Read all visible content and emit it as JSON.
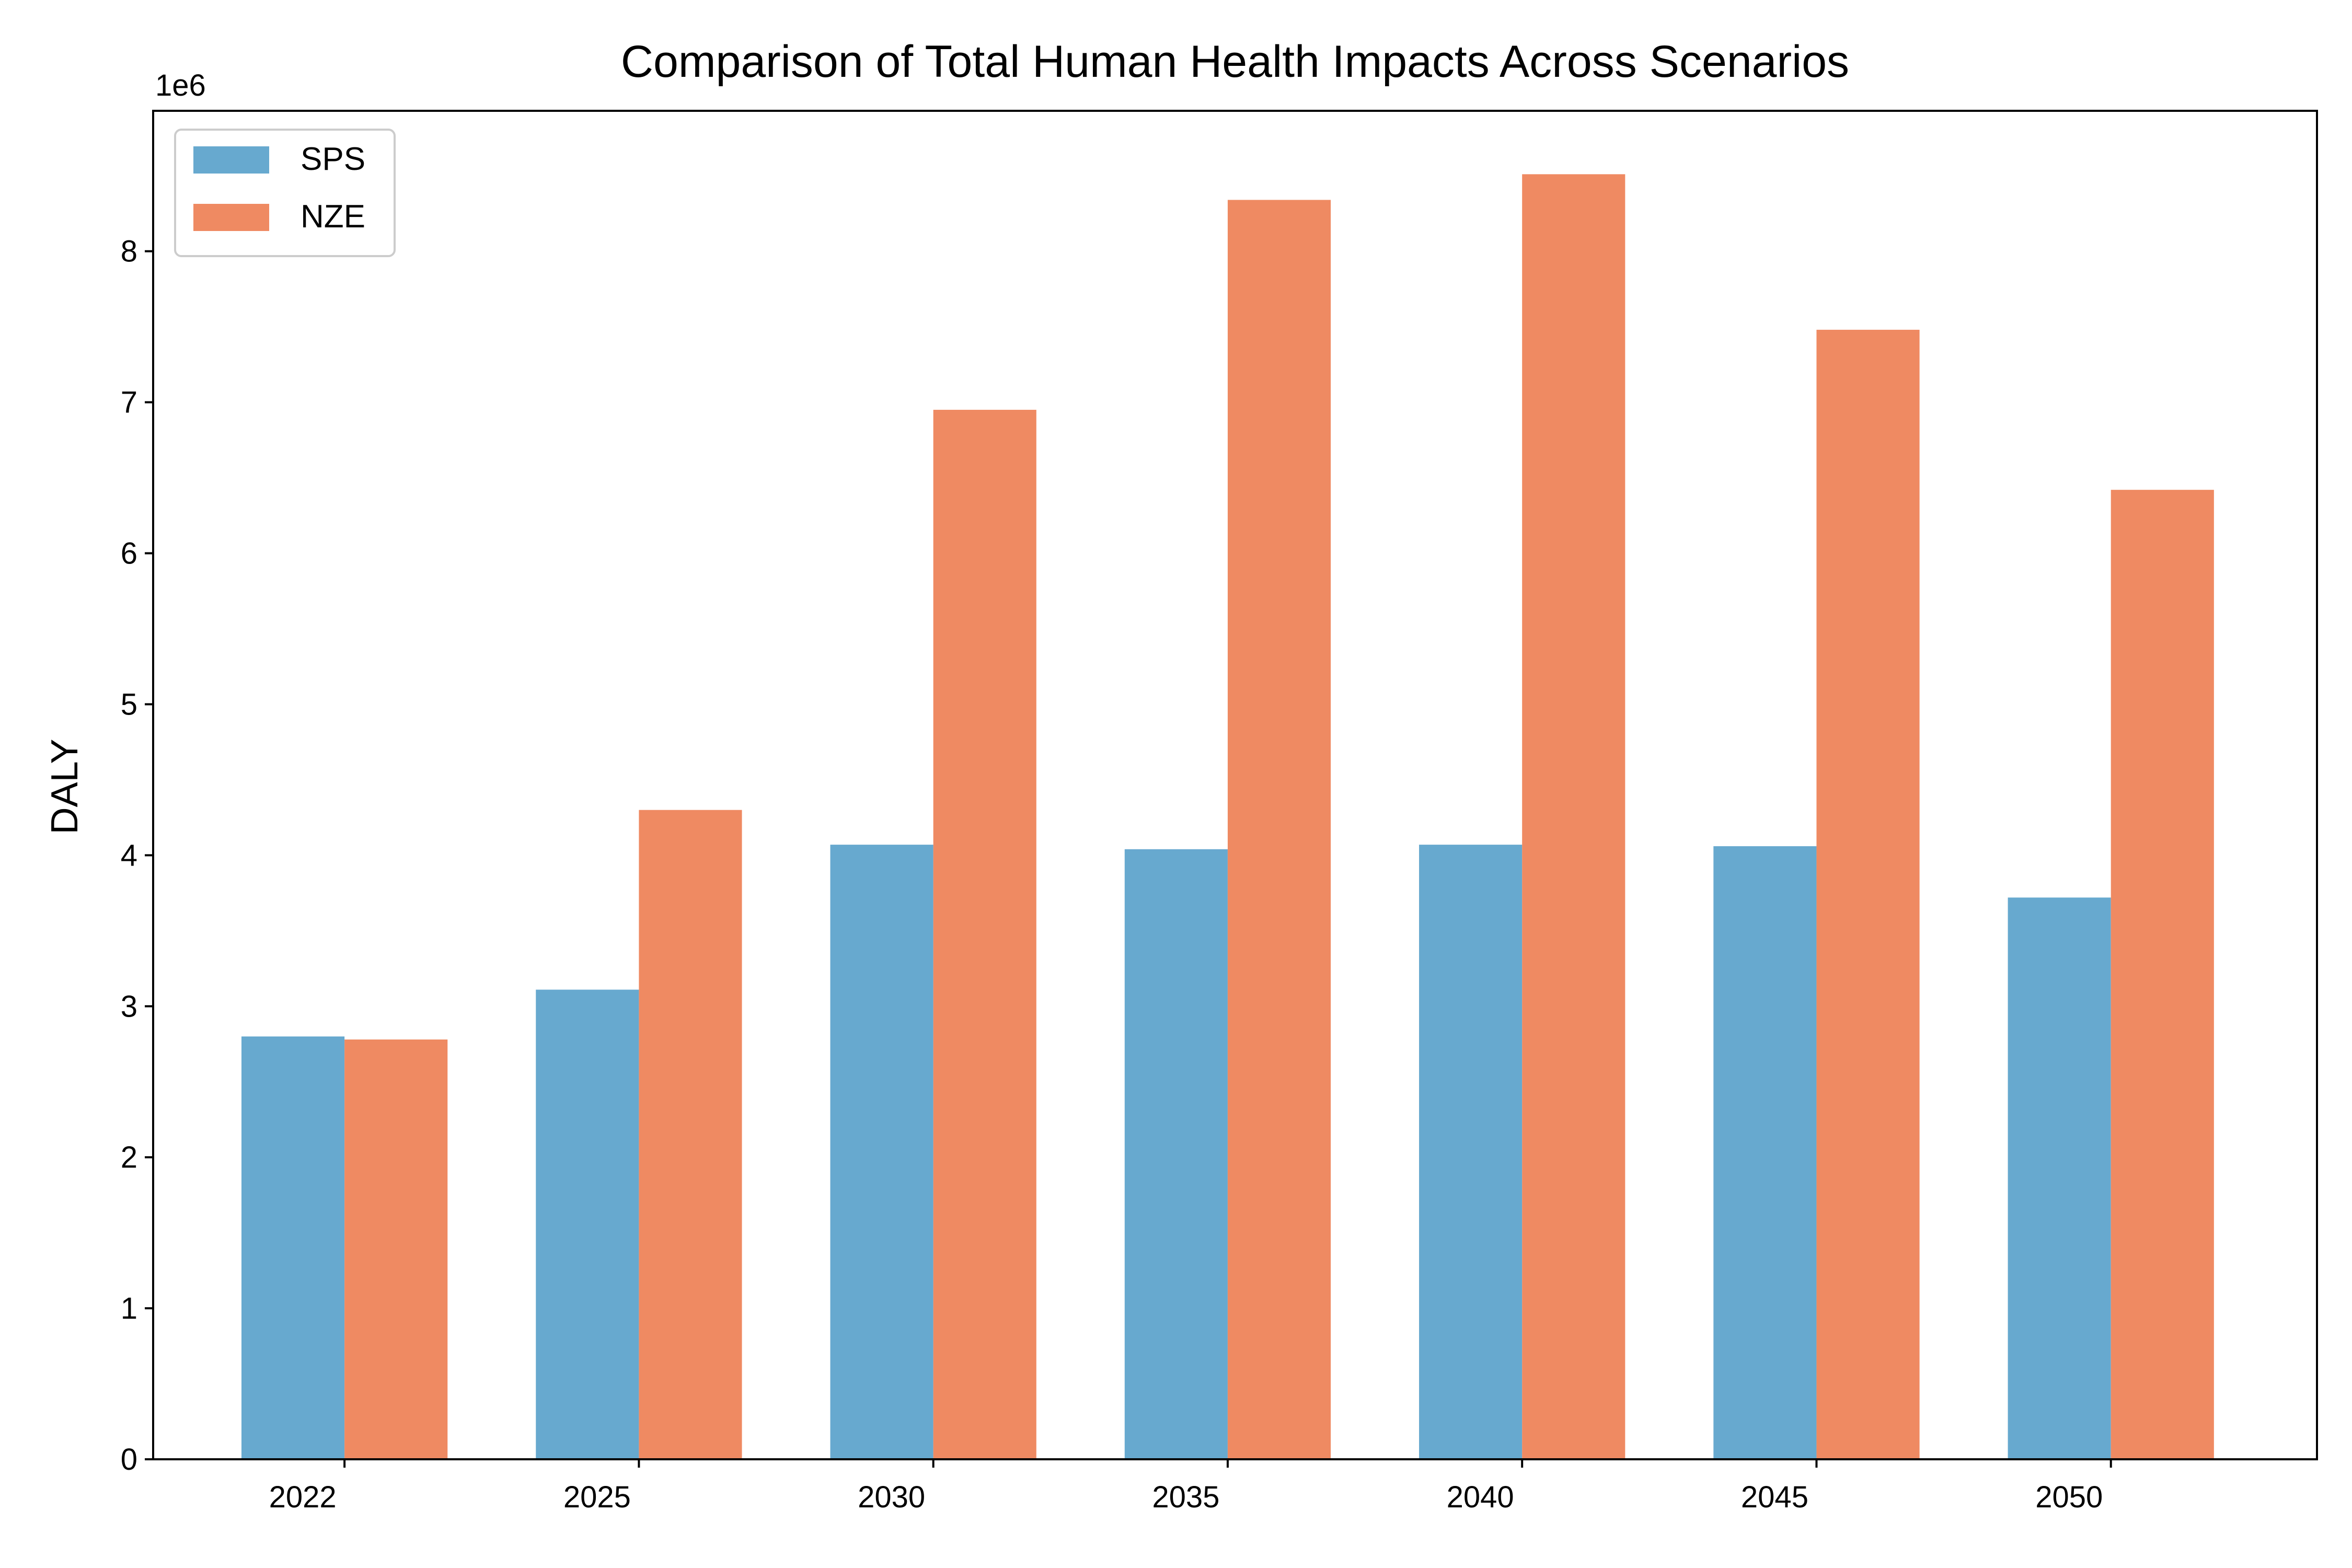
{
  "chart_data": {
    "type": "bar",
    "title": "Comparison of Total Human Health Impacts Across Scenarios",
    "xlabel": "",
    "ylabel": "DALY",
    "y_offset_label": "1e6",
    "y_scale_factor": 1000000,
    "categories": [
      "2022",
      "2025",
      "2030",
      "2035",
      "2040",
      "2045",
      "2050"
    ],
    "series": [
      {
        "name": "SPS",
        "color": "#67a9cf",
        "values": [
          2800000,
          3110000,
          4070000,
          4040000,
          4070000,
          4060000,
          3720000
        ]
      },
      {
        "name": "NZE",
        "color": "#ef8a62",
        "values": [
          2780000,
          4300000,
          6950000,
          8340000,
          8510000,
          7480000,
          6420000
        ]
      }
    ],
    "ylim": [
      0,
      8930000
    ],
    "yticks": [
      0,
      1,
      2,
      3,
      4,
      5,
      6,
      7,
      8
    ],
    "grid": false,
    "legend_position": "upper left"
  }
}
